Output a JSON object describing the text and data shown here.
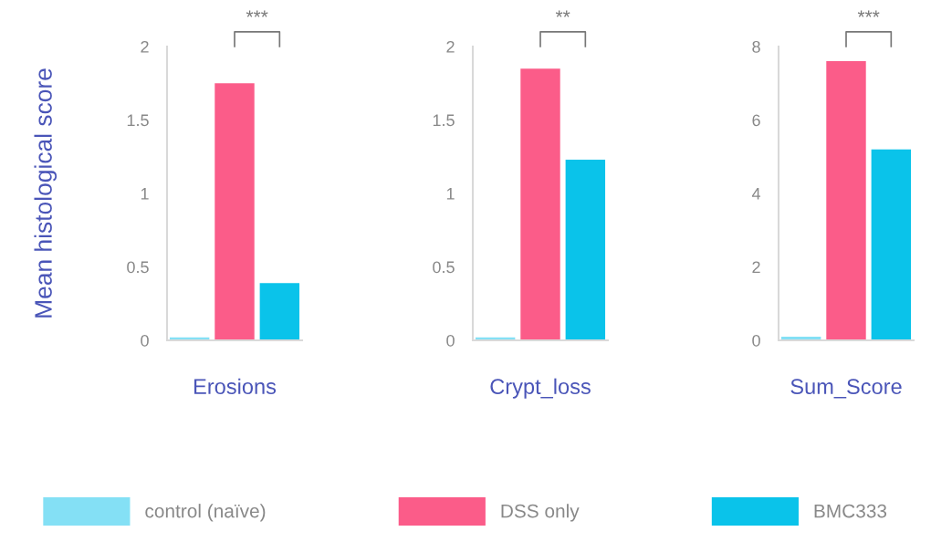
{
  "chart_data": [
    {
      "type": "bar",
      "ylabel": "Mean histological score",
      "categories": [
        "Erosions"
      ],
      "ylim": [
        0,
        2
      ],
      "yticks": [
        0,
        0.5,
        1,
        1.5,
        2
      ],
      "grid": false,
      "legend": "bottom",
      "annotations": [
        "***"
      ],
      "series": [
        {
          "name": "control (naïve)",
          "color": "#84e0f5",
          "values": [
            0.02
          ]
        },
        {
          "name": "DSS only",
          "color": "#fb5c89",
          "values": [
            1.75
          ]
        },
        {
          "name": "BMC333",
          "color": "#0ac3ea",
          "values": [
            0.39
          ]
        }
      ]
    },
    {
      "type": "bar",
      "categories": [
        "Crypt_loss"
      ],
      "ylim": [
        0,
        2
      ],
      "yticks": [
        0,
        0.5,
        1,
        1.5,
        2
      ],
      "grid": false,
      "annotations": [
        "**"
      ],
      "series": [
        {
          "color": "#84e0f5",
          "values": [
            0.02
          ]
        },
        {
          "color": "#fb5c89",
          "values": [
            1.85
          ]
        },
        {
          "color": "#0ac3ea",
          "values": [
            1.23
          ]
        }
      ]
    },
    {
      "type": "bar",
      "categories": [
        "Sum_Score"
      ],
      "ylim": [
        0,
        8
      ],
      "yticks": [
        0,
        2,
        4,
        6,
        8
      ],
      "grid": false,
      "annotations": [
        "***"
      ],
      "series": [
        {
          "color": "#84e0f5",
          "values": [
            0.1
          ]
        },
        {
          "color": "#fb5c89",
          "values": [
            7.6
          ]
        },
        {
          "color": "#0ac3ea",
          "values": [
            5.2
          ]
        }
      ]
    }
  ]
}
